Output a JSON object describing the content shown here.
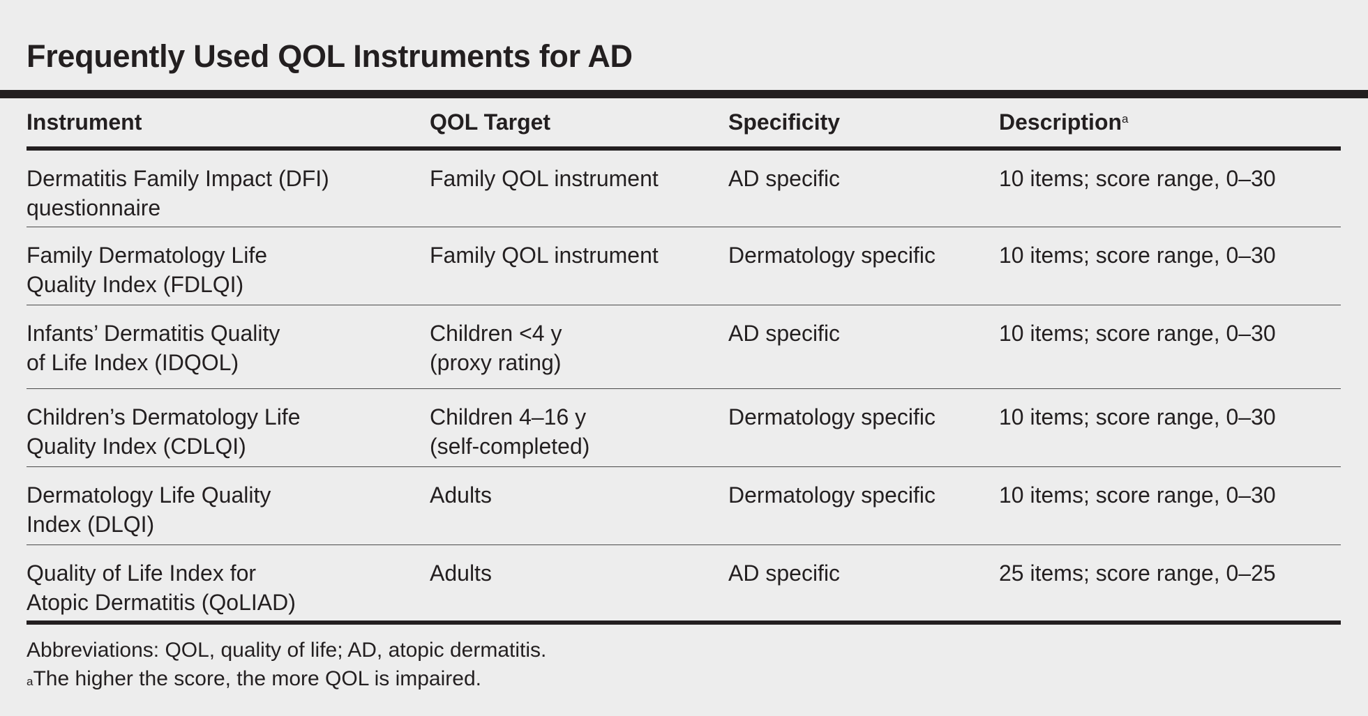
{
  "title": "Frequently Used QOL Instruments for AD",
  "headers": {
    "instrument": "Instrument",
    "target": "QOL Target",
    "specificity": "Specificity",
    "description": "Description",
    "description_sup": "a"
  },
  "rows": [
    {
      "instrument": [
        "Dermatitis Family Impact (DFI)",
        "questionnaire"
      ],
      "target": [
        "Family QOL instrument"
      ],
      "specificity": "AD specific",
      "description": "10 items; score range, 0–30"
    },
    {
      "instrument": [
        "Family Dermatology Life",
        "Quality Index (FDLQI)"
      ],
      "target": [
        "Family QOL instrument"
      ],
      "specificity": "Dermatology specific",
      "description": "10 items; score range, 0–30"
    },
    {
      "instrument": [
        "Infants’ Dermatitis Quality",
        "of Life Index (IDQOL)"
      ],
      "target": [
        "Children <4 y",
        "(proxy rating)"
      ],
      "specificity": "AD specific",
      "description": "10 items; score range, 0–30"
    },
    {
      "instrument": [
        "Children’s Dermatology Life",
        "Quality Index (CDLQI)"
      ],
      "target": [
        "Children 4–16 y",
        "(self-completed)"
      ],
      "specificity": "Dermatology specific",
      "description": "10 items; score range, 0–30"
    },
    {
      "instrument": [
        "Dermatology Life Quality",
        "Index (DLQI)"
      ],
      "target": [
        "Adults"
      ],
      "specificity": "Dermatology specific",
      "description": "10 items; score range, 0–30"
    },
    {
      "instrument": [
        "Quality of Life Index for",
        "Atopic Dermatitis (QoLIAD)"
      ],
      "target": [
        "Adults"
      ],
      "specificity": "AD specific",
      "description": "25 items; score range, 0–25"
    }
  ],
  "footnotes": {
    "abbreviations": "Abbreviations: QOL, quality of life; AD, atopic dermatitis.",
    "note_sup": "a",
    "note_text": "The higher the score, the more QOL is impaired."
  }
}
